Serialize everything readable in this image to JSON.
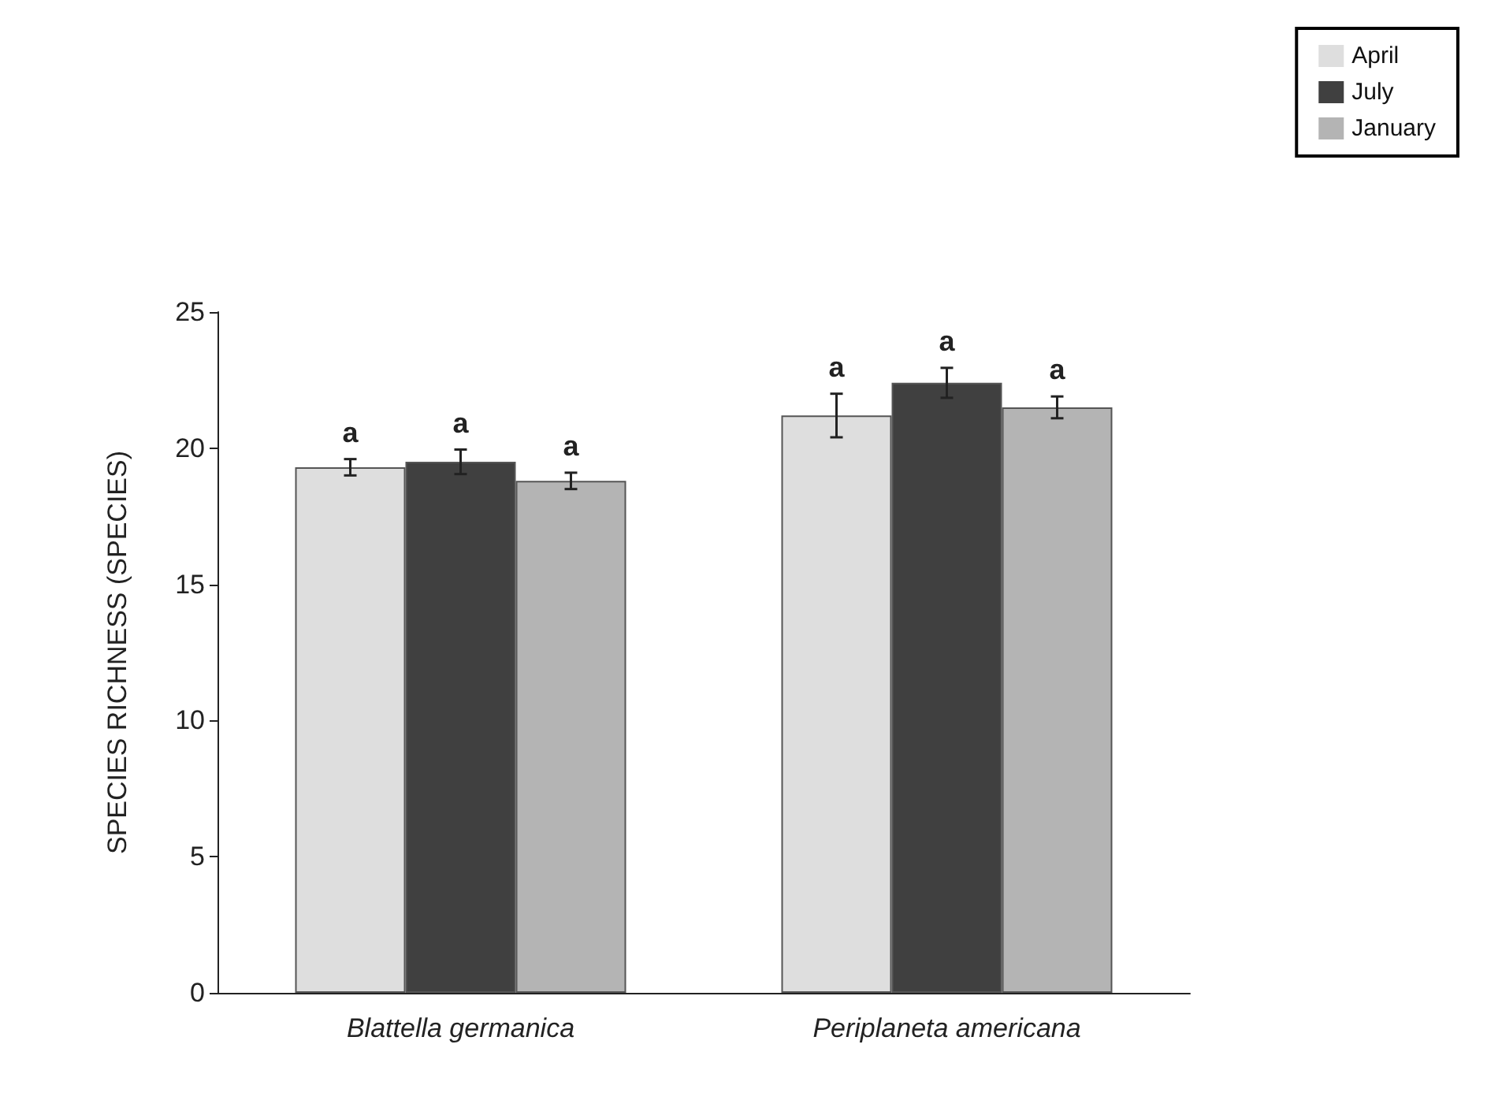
{
  "chart_data": {
    "type": "bar",
    "ylabel": "SPECIES RICHNESS (SPECIES)",
    "categories": [
      "Blattella germanica",
      "Periplaneta americana"
    ],
    "series": [
      {
        "name": "April",
        "color": "#dedede",
        "values": [
          19.3,
          21.2
        ],
        "errors": [
          0.3,
          0.8
        ],
        "value_labels": [
          "a",
          "a"
        ]
      },
      {
        "name": "July",
        "color": "#404040",
        "values": [
          19.5,
          22.4
        ],
        "errors": [
          0.45,
          0.55
        ],
        "value_labels": [
          "a",
          "a"
        ]
      },
      {
        "name": "January",
        "color": "#b4b4b4",
        "values": [
          18.8,
          21.5
        ],
        "errors": [
          0.3,
          0.4
        ],
        "value_labels": [
          "a",
          "a"
        ]
      }
    ],
    "ylim": [
      0,
      25
    ],
    "yticks": [
      0,
      5,
      10,
      15,
      20,
      25
    ],
    "grid": false,
    "legend": "top right"
  }
}
